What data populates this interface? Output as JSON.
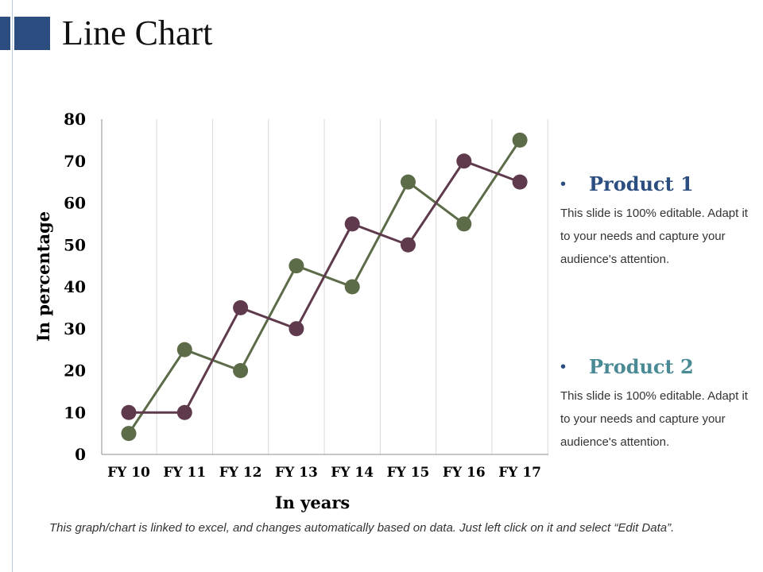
{
  "header": {
    "title": "Line Chart"
  },
  "chart_data": {
    "type": "line",
    "categories": [
      "FY 10",
      "FY 11",
      "FY 12",
      "FY 13",
      "FY 14",
      "FY 15",
      "FY 16",
      "FY 17"
    ],
    "series": [
      {
        "name": "Product 1",
        "color": "#5c6b48",
        "values": [
          5,
          25,
          20,
          45,
          40,
          65,
          55,
          75
        ]
      },
      {
        "name": "Product 2",
        "color": "#5e3a4c",
        "values": [
          10,
          10,
          35,
          30,
          55,
          50,
          70,
          65
        ]
      }
    ],
    "yticks": [
      0,
      10,
      20,
      30,
      40,
      50,
      60,
      70,
      80
    ],
    "ylim": [
      0,
      80
    ],
    "xlabel": "In years",
    "ylabel": "In percentage",
    "grid": "vertical"
  },
  "legend": {
    "bullet": "•",
    "items": [
      {
        "title": "Product 1",
        "color": "#2b4d7f",
        "description": "This slide is 100% editable. Adapt it to your needs and capture your audience's attention."
      },
      {
        "title": "Product 2",
        "color": "#4a8a95",
        "description": "This slide is 100% editable. Adapt it to your needs and capture your audience's attention."
      }
    ]
  },
  "footnote": "This graph/chart is linked to excel, and changes automatically based on data. Just left click on it and select “Edit Data”."
}
